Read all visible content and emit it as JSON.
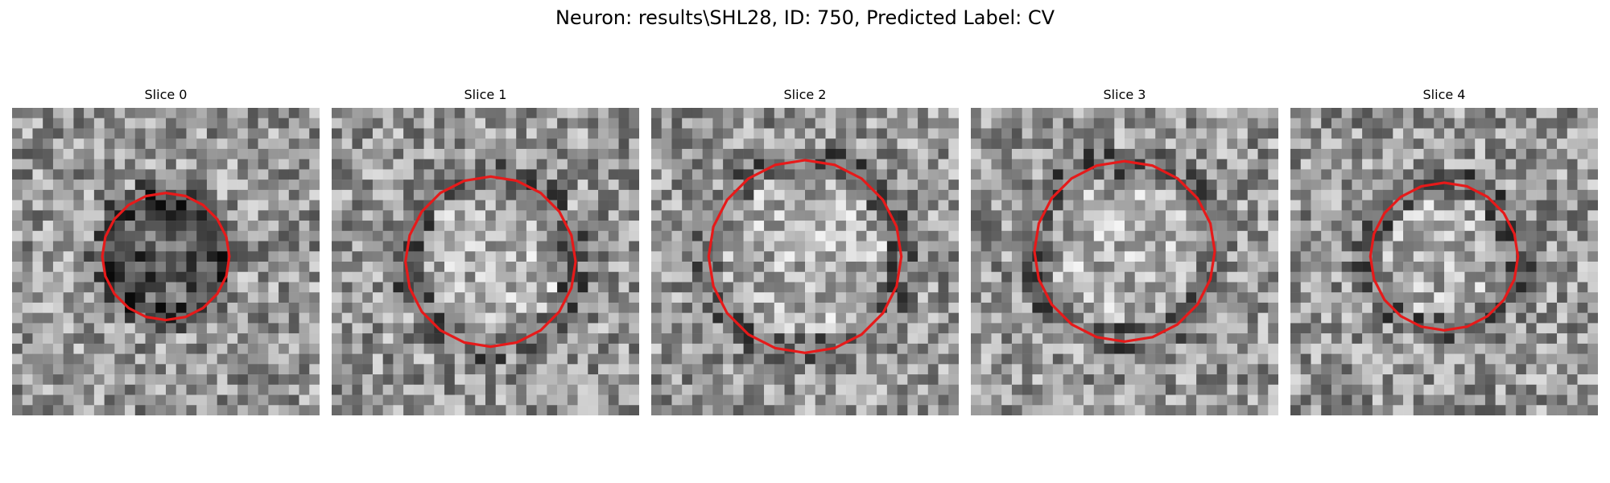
{
  "figure": {
    "suptitle": "Neuron: results\\SHL28, ID: 750, Predicted Label: CV"
  },
  "colors": {
    "contour": "#e61a1a",
    "background": "#ffffff"
  },
  "panels": [
    {
      "title": "Slice 0",
      "seed": 11,
      "dark_center": true,
      "bright_center": false
    },
    {
      "title": "Slice 1",
      "seed": 23,
      "dark_center": false,
      "bright_center": true
    },
    {
      "title": "Slice 2",
      "seed": 37,
      "dark_center": false,
      "bright_center": true
    },
    {
      "title": "Slice 3",
      "seed": 51,
      "dark_center": false,
      "bright_center": true
    },
    {
      "title": "Slice 4",
      "seed": 67,
      "dark_center": false,
      "bright_center": true
    }
  ]
}
